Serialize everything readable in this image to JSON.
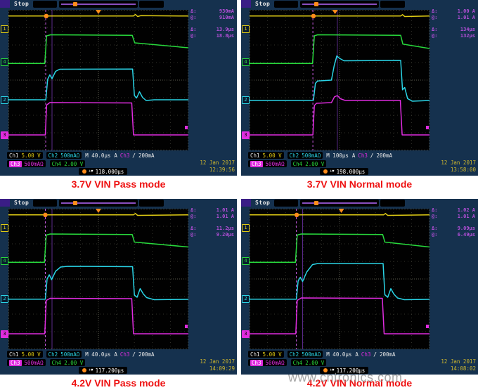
{
  "page": {
    "watermark": "www.cntronics.com"
  },
  "scope": {
    "colors": {
      "ch1_yellow": "#e0cc14",
      "ch2_cyan": "#2ad4e6",
      "ch3_magenta": "#e02ce0",
      "ch4_green": "#28d93c",
      "trigger_orange": "#ff8c1a",
      "measure_purple": "#b44fd8",
      "datetime_yellow": "#cdb62e",
      "caption_red": "#ee1111"
    },
    "left_markers": [
      {
        "label": "1",
        "color": "#e0cc14",
        "y_div": 1.08,
        "filled": false
      },
      {
        "label": "4",
        "color": "#28d93c",
        "y_div": 2.97,
        "filled": false
      },
      {
        "label": "2",
        "color": "#2ad4e6",
        "y_div": 5.11,
        "filled": false
      },
      {
        "label": "3",
        "color": "#e02ce0",
        "y_div": 7.11,
        "filled": true
      }
    ]
  },
  "panels": [
    {
      "caption": "3.7V VIN Pass mode",
      "status": "Stop",
      "measurements": [
        {
          "label": "Δ:",
          "value": "930mA"
        },
        {
          "label": "@:",
          "value": "910mA"
        },
        {
          "label": "Δ:",
          "value": "13.9μs"
        },
        {
          "label": "@:",
          "value": "18.8μs"
        }
      ],
      "readout": {
        "ch1_label": "Ch1",
        "ch1_value": "5.00 V",
        "ch2_label": "Ch2",
        "ch2_value": "500mAΩ",
        "timebase": "M 40.0μs",
        "trig_a": "A",
        "trig_source": "Ch3",
        "trig_slope": "/",
        "trig_level": "200mA",
        "ch3_label": "Ch3",
        "ch3_value": "500mAΩ",
        "ch4_label": "Ch4",
        "ch4_value": "2.00 V",
        "delay_arrow": "+▼",
        "delay": "118.000μs",
        "date": "12 Jan 2017",
        "time": "12:39:56"
      }
    },
    {
      "caption": "3.7V VIN Normal mode",
      "status": "Stop",
      "measurements": [
        {
          "label": "Δ:",
          "value": "1.00 A"
        },
        {
          "label": "@:",
          "value": "1.01 A"
        },
        {
          "label": "Δ:",
          "value": "134μs"
        },
        {
          "label": "@:",
          "value": "132μs"
        }
      ],
      "readout": {
        "ch1_label": "Ch1",
        "ch1_value": "5.00 V",
        "ch2_label": "Ch2",
        "ch2_value": "500mAΩ",
        "timebase": "M 100μs",
        "trig_a": "A",
        "trig_source": "Ch3",
        "trig_slope": "/",
        "trig_level": "200mA",
        "ch3_label": "Ch3",
        "ch3_value": "500mAΩ",
        "ch4_label": "Ch4",
        "ch4_value": "2.00 V",
        "delay_arrow": "+▼",
        "delay": "198.000μs",
        "date": "12 Jan 2017",
        "time": "13:58:00"
      }
    },
    {
      "caption": "4.2V VIN Pass mode",
      "status": "Stop",
      "measurements": [
        {
          "label": "Δ:",
          "value": "1.01 A"
        },
        {
          "label": "@:",
          "value": "1.01 A"
        },
        {
          "label": "Δ:",
          "value": "11.2μs"
        },
        {
          "label": "@:",
          "value": "9.20μs"
        }
      ],
      "readout": {
        "ch1_label": "Ch1",
        "ch1_value": "5.00 V",
        "ch2_label": "Ch2",
        "ch2_value": "500mAΩ",
        "timebase": "M 40.0μs",
        "trig_a": "A",
        "trig_source": "Ch3",
        "trig_slope": "/",
        "trig_level": "200mA",
        "ch3_label": "Ch3",
        "ch3_value": "500mAΩ",
        "ch4_label": "Ch4",
        "ch4_value": "2.00 V",
        "delay_arrow": "+▼",
        "delay": "117.200μs",
        "date": "12 Jan 2017",
        "time": "14:09:29"
      }
    },
    {
      "caption": "4.2V VIN Normal mode",
      "status": "Stop",
      "measurements": [
        {
          "label": "Δ:",
          "value": "1.02 A"
        },
        {
          "label": "@:",
          "value": "1.01 A"
        },
        {
          "label": "Δ:",
          "value": "9.09μs"
        },
        {
          "label": "@:",
          "value": "6.49μs"
        }
      ],
      "readout": {
        "ch1_label": "Ch1",
        "ch1_value": "5.00 V",
        "ch2_label": "Ch2",
        "ch2_value": "500mAΩ",
        "timebase": "M 40.0μs",
        "trig_a": "A",
        "trig_source": "Ch3",
        "trig_slope": "/",
        "trig_level": "200mA",
        "ch3_label": "Ch3",
        "ch3_value": "500mAΩ",
        "ch4_label": "Ch4",
        "ch4_value": "2.00 V",
        "delay_arrow": "+▼",
        "delay": "117.200μs",
        "date": "12 Jan 2017",
        "time": "14:08:02"
      }
    }
  ],
  "chart_data": [
    {
      "type": "line",
      "title": "3.7V VIN Pass mode",
      "xlabel": "time (M 40.0μs/div)",
      "ylabel": "Ch1 5.00V/div, Ch2 500mA/div, Ch3 500mA/div, Ch4 2.00V/div",
      "x_divisions": 10,
      "y_divisions": 8,
      "grid": true,
      "legend_position": "none",
      "series": [
        {
          "name": "Ch1 (5.00 V/div)",
          "color": "#e0cc14",
          "points_div": [
            [
              0,
              0.35
            ],
            [
              6.95,
              0.35
            ],
            [
              7.05,
              0.26
            ],
            [
              7.18,
              0.38
            ],
            [
              7.35,
              0.33
            ],
            [
              10,
              0.35
            ]
          ]
        },
        {
          "name": "Ch4 (2.00 V/div)",
          "color": "#28d93c",
          "points_div": [
            [
              0,
              3.05
            ],
            [
              2.02,
              3.05
            ],
            [
              2.12,
              1.48
            ],
            [
              2.35,
              1.42
            ],
            [
              6.88,
              1.45
            ],
            [
              7.02,
              1.88
            ],
            [
              10,
              2.16
            ]
          ]
        },
        {
          "name": "Ch2 (500mA/div)",
          "color": "#2ad4e6",
          "points_div": [
            [
              0,
              5.12
            ],
            [
              2.08,
              5.12
            ],
            [
              2.18,
              3.95
            ],
            [
              2.3,
              3.7
            ],
            [
              2.42,
              3.92
            ],
            [
              2.62,
              3.5
            ],
            [
              2.85,
              3.38
            ],
            [
              6.9,
              3.37
            ],
            [
              7.0,
              4.88
            ],
            [
              7.12,
              5.02
            ],
            [
              7.28,
              4.66
            ],
            [
              7.45,
              4.98
            ],
            [
              7.65,
              5.16
            ],
            [
              8.1,
              5.12
            ],
            [
              10,
              5.12
            ]
          ]
        },
        {
          "name": "Ch3 (500mA/div)",
          "color": "#e02ce0",
          "points_div": [
            [
              0,
              7.12
            ],
            [
              2.05,
              7.12
            ],
            [
              2.12,
              5.42
            ],
            [
              2.3,
              5.28
            ],
            [
              6.85,
              5.3
            ],
            [
              6.95,
              7.12
            ],
            [
              10,
              7.12
            ]
          ]
        }
      ],
      "markers": {
        "trigger_x_div": 5.0,
        "trigger_dot_x_div": 2.1,
        "right_marker_y_div": 6.6,
        "cursors": [
          {
            "x_div": 2.07,
            "dashed": true
          },
          {
            "x_div": 2.42,
            "dashed": false
          }
        ]
      }
    },
    {
      "type": "line",
      "title": "3.7V VIN Normal mode",
      "xlabel": "time (M 100μs/div)",
      "ylabel": "Ch1 5.00V/div, Ch2 500mA/div, Ch3 500mA/div, Ch4 2.00V/div",
      "x_divisions": 10,
      "y_divisions": 8,
      "grid": true,
      "legend_position": "none",
      "series": [
        {
          "name": "Ch1 (5.00 V/div)",
          "color": "#e0cc14",
          "points_div": [
            [
              0,
              0.35
            ],
            [
              8.4,
              0.35
            ],
            [
              8.5,
              0.27
            ],
            [
              8.62,
              0.38
            ],
            [
              10,
              0.35
            ]
          ]
        },
        {
          "name": "Ch4 (2.00 V/div)",
          "color": "#28d93c",
          "points_div": [
            [
              0,
              3.05
            ],
            [
              3.5,
              3.05
            ],
            [
              3.6,
              1.48
            ],
            [
              3.78,
              1.42
            ],
            [
              8.4,
              1.45
            ],
            [
              8.52,
              1.95
            ],
            [
              10,
              2.2
            ]
          ]
        },
        {
          "name": "Ch2 (500mA/div)",
          "color": "#2ad4e6",
          "points_div": [
            [
              0,
              5.15
            ],
            [
              3.55,
              5.15
            ],
            [
              3.66,
              4.18
            ],
            [
              3.78,
              4.05
            ],
            [
              4.55,
              4.0
            ],
            [
              4.7,
              3.2
            ],
            [
              4.85,
              2.62
            ],
            [
              5.0,
              2.76
            ],
            [
              5.25,
              2.9
            ],
            [
              8.4,
              2.88
            ],
            [
              8.5,
              4.55
            ],
            [
              8.62,
              4.42
            ],
            [
              8.78,
              5.05
            ],
            [
              9.05,
              5.2
            ],
            [
              10,
              5.16
            ]
          ]
        },
        {
          "name": "Ch3 (500mA/div)",
          "color": "#e02ce0",
          "points_div": [
            [
              0,
              7.12
            ],
            [
              3.52,
              7.12
            ],
            [
              3.6,
              5.45
            ],
            [
              3.72,
              5.32
            ],
            [
              4.55,
              5.28
            ],
            [
              4.72,
              4.95
            ],
            [
              4.88,
              4.88
            ],
            [
              5.05,
              5.06
            ],
            [
              5.3,
              5.15
            ],
            [
              8.38,
              5.15
            ],
            [
              8.48,
              7.12
            ],
            [
              10,
              7.12
            ]
          ]
        }
      ],
      "markers": {
        "trigger_x_div": 4.75,
        "trigger_dot_x_div": 3.55,
        "right_marker_y_div": 6.6,
        "cursors": [
          {
            "x_div": 3.52,
            "dashed": true
          },
          {
            "x_div": 4.88,
            "dashed": false
          }
        ]
      }
    },
    {
      "type": "line",
      "title": "4.2V VIN Pass mode",
      "xlabel": "time (M 40.0μs/div)",
      "ylabel": "Ch1 5.00V/div, Ch2 500mA/div, Ch3 500mA/div, Ch4 2.00V/div",
      "x_divisions": 10,
      "y_divisions": 8,
      "grid": true,
      "legend_position": "none",
      "series": [
        {
          "name": "Ch1 (5.00 V/div)",
          "color": "#e0cc14",
          "points_div": [
            [
              0,
              0.35
            ],
            [
              6.95,
              0.35
            ],
            [
              7.05,
              0.27
            ],
            [
              7.18,
              0.38
            ],
            [
              10,
              0.35
            ]
          ]
        },
        {
          "name": "Ch4 (2.00 V/div)",
          "color": "#28d93c",
          "points_div": [
            [
              0,
              3.05
            ],
            [
              2.0,
              3.05
            ],
            [
              2.1,
              1.5
            ],
            [
              2.32,
              1.44
            ],
            [
              6.88,
              1.47
            ],
            [
              7.0,
              1.9
            ],
            [
              10,
              2.18
            ]
          ]
        },
        {
          "name": "Ch2 (500mA/div)",
          "color": "#2ad4e6",
          "points_div": [
            [
              0,
              5.15
            ],
            [
              2.05,
              5.15
            ],
            [
              2.15,
              4.0
            ],
            [
              2.27,
              3.76
            ],
            [
              2.4,
              4.04
            ],
            [
              2.62,
              3.56
            ],
            [
              2.9,
              3.32
            ],
            [
              3.3,
              3.28
            ],
            [
              6.9,
              3.3
            ],
            [
              7.0,
              4.92
            ],
            [
              7.15,
              5.04
            ],
            [
              7.32,
              4.55
            ],
            [
              7.5,
              4.86
            ],
            [
              7.68,
              5.06
            ],
            [
              8.1,
              5.18
            ],
            [
              10,
              5.16
            ]
          ]
        },
        {
          "name": "Ch3 (500mA/div)",
          "color": "#e02ce0",
          "points_div": [
            [
              0,
              7.12
            ],
            [
              2.02,
              7.12
            ],
            [
              2.1,
              5.22
            ],
            [
              2.32,
              5.1
            ],
            [
              6.85,
              5.12
            ],
            [
              6.95,
              7.12
            ],
            [
              10,
              7.12
            ]
          ]
        }
      ],
      "markers": {
        "trigger_x_div": 5.0,
        "trigger_dot_x_div": 2.05,
        "right_marker_y_div": 6.6,
        "cursors": [
          {
            "x_div": 2.05,
            "dashed": true
          },
          {
            "x_div": 2.42,
            "dashed": false
          }
        ]
      }
    },
    {
      "type": "line",
      "title": "4.2V VIN Normal mode",
      "xlabel": "time (M 40.0μs/div)",
      "ylabel": "Ch1 5.00V/div, Ch2 500mA/div, Ch3 500mA/div, Ch4 2.00V/div",
      "x_divisions": 10,
      "y_divisions": 8,
      "grid": true,
      "legend_position": "none",
      "series": [
        {
          "name": "Ch1 (5.00 V/div)",
          "color": "#e0cc14",
          "points_div": [
            [
              0,
              0.35
            ],
            [
              7.45,
              0.35
            ],
            [
              7.55,
              0.27
            ],
            [
              7.68,
              0.38
            ],
            [
              10,
              0.35
            ]
          ]
        },
        {
          "name": "Ch4 (2.00 V/div)",
          "color": "#28d93c",
          "points_div": [
            [
              0,
              3.05
            ],
            [
              2.55,
              3.05
            ],
            [
              2.65,
              1.5
            ],
            [
              2.87,
              1.44
            ],
            [
              7.4,
              1.47
            ],
            [
              7.52,
              1.9
            ],
            [
              10,
              2.18
            ]
          ]
        },
        {
          "name": "Ch2 (500mA/div)",
          "color": "#2ad4e6",
          "points_div": [
            [
              0,
              5.15
            ],
            [
              2.6,
              5.15
            ],
            [
              2.7,
              4.12
            ],
            [
              2.82,
              3.9
            ],
            [
              2.95,
              4.14
            ],
            [
              3.18,
              3.6
            ],
            [
              3.5,
              3.18
            ],
            [
              3.8,
              3.12
            ],
            [
              7.42,
              3.12
            ],
            [
              7.52,
              4.9
            ],
            [
              7.68,
              5.04
            ],
            [
              7.85,
              4.55
            ],
            [
              8.02,
              4.86
            ],
            [
              8.22,
              5.08
            ],
            [
              8.6,
              5.18
            ],
            [
              10,
              5.16
            ]
          ]
        },
        {
          "name": "Ch3 (500mA/div)",
          "color": "#e02ce0",
          "points_div": [
            [
              0,
              7.12
            ],
            [
              2.57,
              7.12
            ],
            [
              2.65,
              5.22
            ],
            [
              2.87,
              5.08
            ],
            [
              7.38,
              5.1
            ],
            [
              7.48,
              7.12
            ],
            [
              10,
              7.12
            ]
          ]
        }
      ],
      "markers": {
        "trigger_x_div": 5.1,
        "trigger_dot_x_div": 2.62,
        "right_marker_y_div": 6.6,
        "cursors": [
          {
            "x_div": 2.6,
            "dashed": true
          },
          {
            "x_div": 2.95,
            "dashed": false
          }
        ]
      }
    }
  ]
}
